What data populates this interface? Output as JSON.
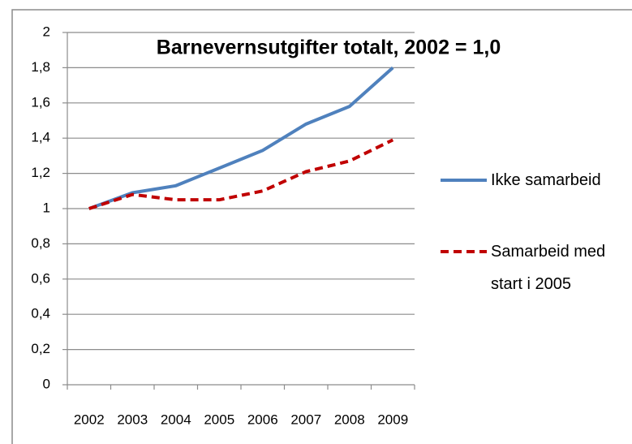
{
  "chart_data": {
    "type": "line",
    "title": "Barnevernsutgifter totalt, 2002 = 1,0",
    "categories": [
      "2002",
      "2003",
      "2004",
      "2005",
      "2006",
      "2007",
      "2008",
      "2009"
    ],
    "series": [
      {
        "name": "Ikke samarbeid",
        "color": "#4f81bd",
        "dash": "solid",
        "values": [
          1.0,
          1.09,
          1.13,
          1.23,
          1.33,
          1.48,
          1.58,
          1.8
        ]
      },
      {
        "name": "Samarbeid med start i 2005",
        "color": "#c00000",
        "dash": "dashed",
        "values": [
          1.0,
          1.08,
          1.05,
          1.05,
          1.1,
          1.21,
          1.27,
          1.39
        ]
      }
    ],
    "ylim": [
      0,
      2
    ],
    "yticks": [
      0,
      {
        "value": 0.2,
        "label": "0,2"
      },
      {
        "value": 0.4,
        "label": "0,4"
      },
      {
        "value": 0.6,
        "label": "0,6"
      },
      {
        "value": 0.8,
        "label": "0,8"
      },
      1,
      {
        "value": 1.2,
        "label": "1,2"
      },
      {
        "value": 1.4,
        "label": "1,4"
      },
      {
        "value": 1.6,
        "label": "1,6"
      },
      {
        "value": 1.8,
        "label": "1,8"
      },
      2
    ],
    "grid": true,
    "legend": "right"
  }
}
